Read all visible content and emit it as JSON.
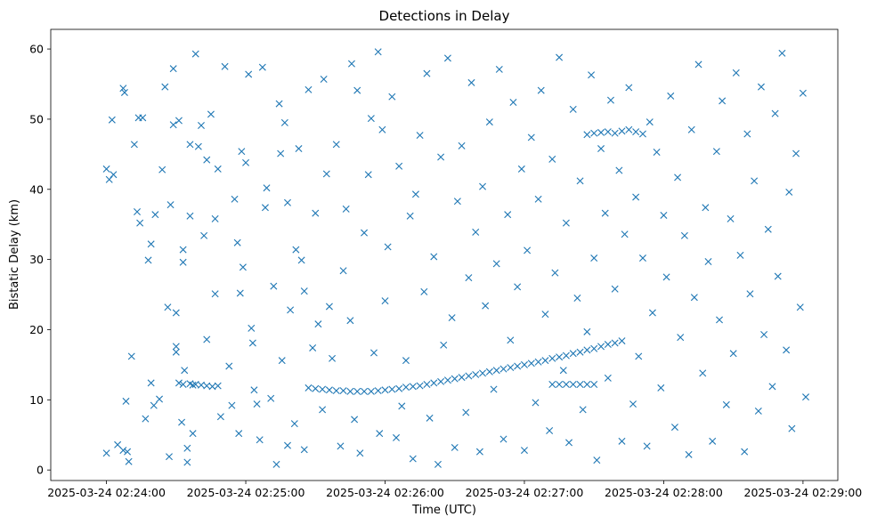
{
  "chart_data": {
    "type": "scatter",
    "title": "Detections in Delay",
    "xlabel": "Time (UTC)",
    "ylabel": "Bistatic Delay (km)",
    "marker": "x",
    "color": "#1f77b4",
    "xlim": [
      -0.4,
      5.25
    ],
    "ylim": [
      -1.5,
      62.8
    ],
    "x_units": "minutes after 2025-03-24 02:24:00",
    "x_ticks": [
      {
        "value": 0,
        "label": "2025-03-24 02:24:00"
      },
      {
        "value": 1,
        "label": "2025-03-24 02:25:00"
      },
      {
        "value": 2,
        "label": "2025-03-24 02:26:00"
      },
      {
        "value": 3,
        "label": "2025-03-24 02:27:00"
      },
      {
        "value": 4,
        "label": "2025-03-24 02:28:00"
      },
      {
        "value": 5,
        "label": "2025-03-24 02:29:00"
      }
    ],
    "y_ticks": [
      {
        "value": 0,
        "label": "0"
      },
      {
        "value": 10,
        "label": "10"
      },
      {
        "value": 20,
        "label": "20"
      },
      {
        "value": 30,
        "label": "30"
      },
      {
        "value": 40,
        "label": "40"
      },
      {
        "value": 50,
        "label": "50"
      },
      {
        "value": 60,
        "label": "60"
      }
    ],
    "track_points": [
      [
        0.55,
        12.2
      ],
      [
        0.6,
        12.3
      ],
      [
        0.64,
        12.2
      ],
      [
        0.68,
        12.1
      ],
      [
        0.72,
        12.0
      ],
      [
        0.76,
        11.9
      ],
      [
        0.8,
        12.0
      ],
      [
        1.45,
        11.7
      ],
      [
        1.5,
        11.6
      ],
      [
        1.55,
        11.5
      ],
      [
        1.6,
        11.4
      ],
      [
        1.65,
        11.3
      ],
      [
        1.7,
        11.3
      ],
      [
        1.75,
        11.2
      ],
      [
        1.8,
        11.2
      ],
      [
        1.85,
        11.2
      ],
      [
        1.9,
        11.2
      ],
      [
        1.95,
        11.3
      ],
      [
        2.0,
        11.4
      ],
      [
        2.05,
        11.5
      ],
      [
        2.1,
        11.6
      ],
      [
        2.15,
        11.8
      ],
      [
        2.2,
        11.9
      ],
      [
        2.25,
        12.0
      ],
      [
        2.3,
        12.2
      ],
      [
        2.35,
        12.4
      ],
      [
        2.4,
        12.6
      ],
      [
        2.45,
        12.8
      ],
      [
        2.5,
        13.0
      ],
      [
        2.55,
        13.2
      ],
      [
        2.6,
        13.4
      ],
      [
        2.65,
        13.6
      ],
      [
        2.7,
        13.8
      ],
      [
        2.75,
        14.0
      ],
      [
        2.8,
        14.2
      ],
      [
        2.85,
        14.4
      ],
      [
        2.9,
        14.6
      ],
      [
        2.95,
        14.8
      ],
      [
        3.0,
        15.0
      ],
      [
        3.05,
        15.2
      ],
      [
        3.1,
        15.4
      ],
      [
        3.15,
        15.6
      ],
      [
        3.2,
        15.9
      ],
      [
        3.25,
        16.1
      ],
      [
        3.3,
        16.3
      ],
      [
        3.35,
        16.6
      ],
      [
        3.4,
        16.8
      ],
      [
        3.45,
        17.1
      ],
      [
        3.5,
        17.3
      ],
      [
        3.55,
        17.6
      ],
      [
        3.6,
        17.9
      ],
      [
        3.65,
        18.1
      ],
      [
        3.7,
        18.4
      ],
      [
        3.2,
        12.2
      ],
      [
        3.25,
        12.2
      ],
      [
        3.3,
        12.2
      ],
      [
        3.35,
        12.2
      ],
      [
        3.4,
        12.2
      ],
      [
        3.45,
        12.2
      ],
      [
        3.5,
        12.2
      ],
      [
        3.45,
        47.8
      ],
      [
        3.5,
        48.0
      ],
      [
        3.55,
        48.1
      ],
      [
        3.6,
        48.2
      ],
      [
        3.65,
        48.0
      ],
      [
        3.7,
        48.3
      ],
      [
        3.75,
        48.5
      ],
      [
        3.8,
        48.2
      ],
      [
        3.85,
        47.9
      ]
    ],
    "noise_points": [
      [
        -0.0,
        2.4
      ],
      [
        -0.0,
        42.9
      ],
      [
        0.02,
        41.4
      ],
      [
        0.04,
        49.9
      ],
      [
        0.05,
        42.1
      ],
      [
        0.08,
        3.6
      ],
      [
        0.12,
        2.8
      ],
      [
        0.12,
        54.4
      ],
      [
        0.13,
        53.8
      ],
      [
        0.14,
        9.8
      ],
      [
        0.15,
        2.6
      ],
      [
        0.16,
        1.2
      ],
      [
        0.18,
        16.2
      ],
      [
        0.2,
        46.4
      ],
      [
        0.22,
        36.8
      ],
      [
        0.23,
        50.2
      ],
      [
        0.24,
        35.2
      ],
      [
        0.26,
        50.2
      ],
      [
        0.28,
        7.3
      ],
      [
        0.3,
        29.9
      ],
      [
        0.32,
        12.4
      ],
      [
        0.32,
        32.2
      ],
      [
        0.34,
        9.2
      ],
      [
        0.35,
        36.4
      ],
      [
        0.38,
        10.1
      ],
      [
        0.4,
        42.8
      ],
      [
        0.42,
        54.6
      ],
      [
        0.44,
        23.2
      ],
      [
        0.45,
        1.9
      ],
      [
        0.46,
        37.8
      ],
      [
        0.48,
        49.2
      ],
      [
        0.48,
        57.2
      ],
      [
        0.5,
        22.4
      ],
      [
        0.5,
        17.6
      ],
      [
        0.5,
        16.8
      ],
      [
        0.52,
        49.8
      ],
      [
        0.52,
        12.4
      ],
      [
        0.54,
        6.8
      ],
      [
        0.55,
        31.4
      ],
      [
        0.55,
        29.6
      ],
      [
        0.56,
        14.2
      ],
      [
        0.58,
        3.1
      ],
      [
        0.58,
        1.1
      ],
      [
        0.6,
        46.4
      ],
      [
        0.6,
        36.2
      ],
      [
        0.62,
        5.2
      ],
      [
        0.62,
        12.1
      ],
      [
        0.64,
        59.3
      ],
      [
        0.66,
        46.1
      ],
      [
        0.68,
        49.1
      ],
      [
        0.7,
        33.4
      ],
      [
        0.72,
        18.6
      ],
      [
        0.72,
        44.2
      ],
      [
        0.75,
        50.7
      ],
      [
        0.78,
        25.1
      ],
      [
        0.78,
        35.8
      ],
      [
        0.8,
        42.9
      ],
      [
        0.82,
        7.6
      ],
      [
        0.85,
        57.5
      ],
      [
        0.88,
        14.8
      ],
      [
        0.9,
        9.2
      ],
      [
        0.92,
        38.6
      ],
      [
        0.94,
        32.4
      ],
      [
        0.95,
        5.2
      ],
      [
        0.96,
        25.2
      ],
      [
        0.97,
        45.4
      ],
      [
        0.98,
        28.9
      ],
      [
        1.0,
        43.8
      ],
      [
        1.02,
        56.4
      ],
      [
        1.04,
        20.2
      ],
      [
        1.05,
        18.1
      ],
      [
        1.06,
        11.4
      ],
      [
        1.08,
        9.4
      ],
      [
        1.1,
        4.3
      ],
      [
        1.12,
        57.4
      ],
      [
        1.14,
        37.4
      ],
      [
        1.15,
        40.2
      ],
      [
        1.18,
        10.2
      ],
      [
        1.2,
        26.2
      ],
      [
        1.22,
        0.8
      ],
      [
        1.24,
        52.2
      ],
      [
        1.25,
        45.1
      ],
      [
        1.26,
        15.6
      ],
      [
        1.28,
        49.5
      ],
      [
        1.3,
        3.5
      ],
      [
        1.3,
        38.1
      ],
      [
        1.32,
        22.8
      ],
      [
        1.35,
        6.6
      ],
      [
        1.36,
        31.4
      ],
      [
        1.38,
        45.8
      ],
      [
        1.4,
        29.9
      ],
      [
        1.42,
        2.9
      ],
      [
        1.42,
        25.5
      ],
      [
        1.45,
        54.2
      ],
      [
        1.48,
        17.4
      ],
      [
        1.5,
        36.6
      ],
      [
        1.52,
        20.8
      ],
      [
        1.55,
        8.6
      ],
      [
        1.56,
        55.7
      ],
      [
        1.58,
        42.2
      ],
      [
        1.6,
        23.3
      ],
      [
        1.62,
        15.9
      ],
      [
        1.65,
        46.4
      ],
      [
        1.68,
        3.4
      ],
      [
        1.7,
        28.4
      ],
      [
        1.72,
        37.2
      ],
      [
        1.75,
        21.3
      ],
      [
        1.76,
        57.9
      ],
      [
        1.78,
        7.2
      ],
      [
        1.8,
        54.1
      ],
      [
        1.82,
        2.4
      ],
      [
        1.85,
        33.8
      ],
      [
        1.88,
        42.1
      ],
      [
        1.9,
        50.1
      ],
      [
        1.92,
        16.7
      ],
      [
        1.95,
        59.6
      ],
      [
        1.96,
        5.2
      ],
      [
        1.98,
        48.5
      ],
      [
        2.0,
        24.1
      ],
      [
        2.02,
        31.8
      ],
      [
        2.05,
        53.2
      ],
      [
        2.08,
        4.6
      ],
      [
        2.1,
        43.3
      ],
      [
        2.12,
        9.1
      ],
      [
        2.15,
        15.6
      ],
      [
        2.18,
        36.2
      ],
      [
        2.2,
        1.6
      ],
      [
        2.22,
        39.3
      ],
      [
        2.25,
        47.7
      ],
      [
        2.28,
        25.4
      ],
      [
        2.3,
        56.5
      ],
      [
        2.32,
        7.4
      ],
      [
        2.35,
        30.4
      ],
      [
        2.38,
        0.8
      ],
      [
        2.4,
        44.6
      ],
      [
        2.42,
        17.8
      ],
      [
        2.45,
        58.7
      ],
      [
        2.48,
        21.7
      ],
      [
        2.5,
        3.2
      ],
      [
        2.52,
        38.3
      ],
      [
        2.55,
        46.2
      ],
      [
        2.58,
        8.2
      ],
      [
        2.6,
        27.4
      ],
      [
        2.62,
        55.2
      ],
      [
        2.65,
        33.9
      ],
      [
        2.68,
        2.6
      ],
      [
        2.7,
        40.4
      ],
      [
        2.72,
        23.4
      ],
      [
        2.75,
        49.6
      ],
      [
        2.78,
        11.5
      ],
      [
        2.8,
        29.4
      ],
      [
        2.82,
        57.1
      ],
      [
        2.85,
        4.4
      ],
      [
        2.88,
        36.4
      ],
      [
        2.9,
        18.5
      ],
      [
        2.92,
        52.4
      ],
      [
        2.95,
        26.1
      ],
      [
        2.98,
        42.9
      ],
      [
        3.0,
        2.8
      ],
      [
        3.02,
        31.3
      ],
      [
        3.05,
        47.4
      ],
      [
        3.08,
        9.6
      ],
      [
        3.1,
        38.6
      ],
      [
        3.12,
        54.1
      ],
      [
        3.15,
        22.2
      ],
      [
        3.18,
        5.6
      ],
      [
        3.2,
        44.3
      ],
      [
        3.22,
        28.1
      ],
      [
        3.25,
        58.8
      ],
      [
        3.28,
        14.2
      ],
      [
        3.3,
        35.2
      ],
      [
        3.32,
        3.9
      ],
      [
        3.35,
        51.4
      ],
      [
        3.38,
        24.5
      ],
      [
        3.4,
        41.2
      ],
      [
        3.42,
        8.6
      ],
      [
        3.45,
        19.7
      ],
      [
        3.48,
        56.3
      ],
      [
        3.5,
        30.2
      ],
      [
        3.52,
        1.4
      ],
      [
        3.55,
        45.8
      ],
      [
        3.58,
        36.6
      ],
      [
        3.6,
        13.1
      ],
      [
        3.62,
        52.7
      ],
      [
        3.65,
        25.8
      ],
      [
        3.68,
        42.7
      ],
      [
        3.7,
        4.1
      ],
      [
        3.72,
        33.6
      ],
      [
        3.75,
        54.5
      ],
      [
        3.78,
        9.4
      ],
      [
        3.8,
        38.9
      ],
      [
        3.82,
        16.2
      ],
      [
        3.85,
        30.2
      ],
      [
        3.88,
        3.4
      ],
      [
        3.9,
        49.6
      ],
      [
        3.92,
        22.4
      ],
      [
        3.95,
        45.3
      ],
      [
        3.98,
        11.7
      ],
      [
        4.0,
        36.3
      ],
      [
        4.02,
        27.5
      ],
      [
        4.05,
        53.3
      ],
      [
        4.08,
        6.1
      ],
      [
        4.1,
        41.7
      ],
      [
        4.12,
        18.9
      ],
      [
        4.15,
        33.4
      ],
      [
        4.18,
        2.2
      ],
      [
        4.2,
        48.5
      ],
      [
        4.22,
        24.6
      ],
      [
        4.25,
        57.8
      ],
      [
        4.28,
        13.8
      ],
      [
        4.3,
        37.4
      ],
      [
        4.32,
        29.7
      ],
      [
        4.35,
        4.1
      ],
      [
        4.38,
        45.4
      ],
      [
        4.4,
        21.4
      ],
      [
        4.42,
        52.6
      ],
      [
        4.45,
        9.3
      ],
      [
        4.48,
        35.8
      ],
      [
        4.5,
        16.6
      ],
      [
        4.52,
        56.6
      ],
      [
        4.55,
        30.6
      ],
      [
        4.58,
        2.6
      ],
      [
        4.6,
        47.9
      ],
      [
        4.62,
        25.1
      ],
      [
        4.65,
        41.2
      ],
      [
        4.68,
        8.4
      ],
      [
        4.7,
        54.6
      ],
      [
        4.72,
        19.3
      ],
      [
        4.75,
        34.3
      ],
      [
        4.78,
        11.9
      ],
      [
        4.8,
        50.8
      ],
      [
        4.82,
        27.6
      ],
      [
        4.85,
        59.4
      ],
      [
        4.88,
        17.1
      ],
      [
        4.9,
        39.6
      ],
      [
        4.92,
        5.9
      ],
      [
        4.95,
        45.1
      ],
      [
        4.98,
        23.2
      ],
      [
        5.0,
        53.7
      ],
      [
        5.02,
        10.4
      ]
    ]
  }
}
